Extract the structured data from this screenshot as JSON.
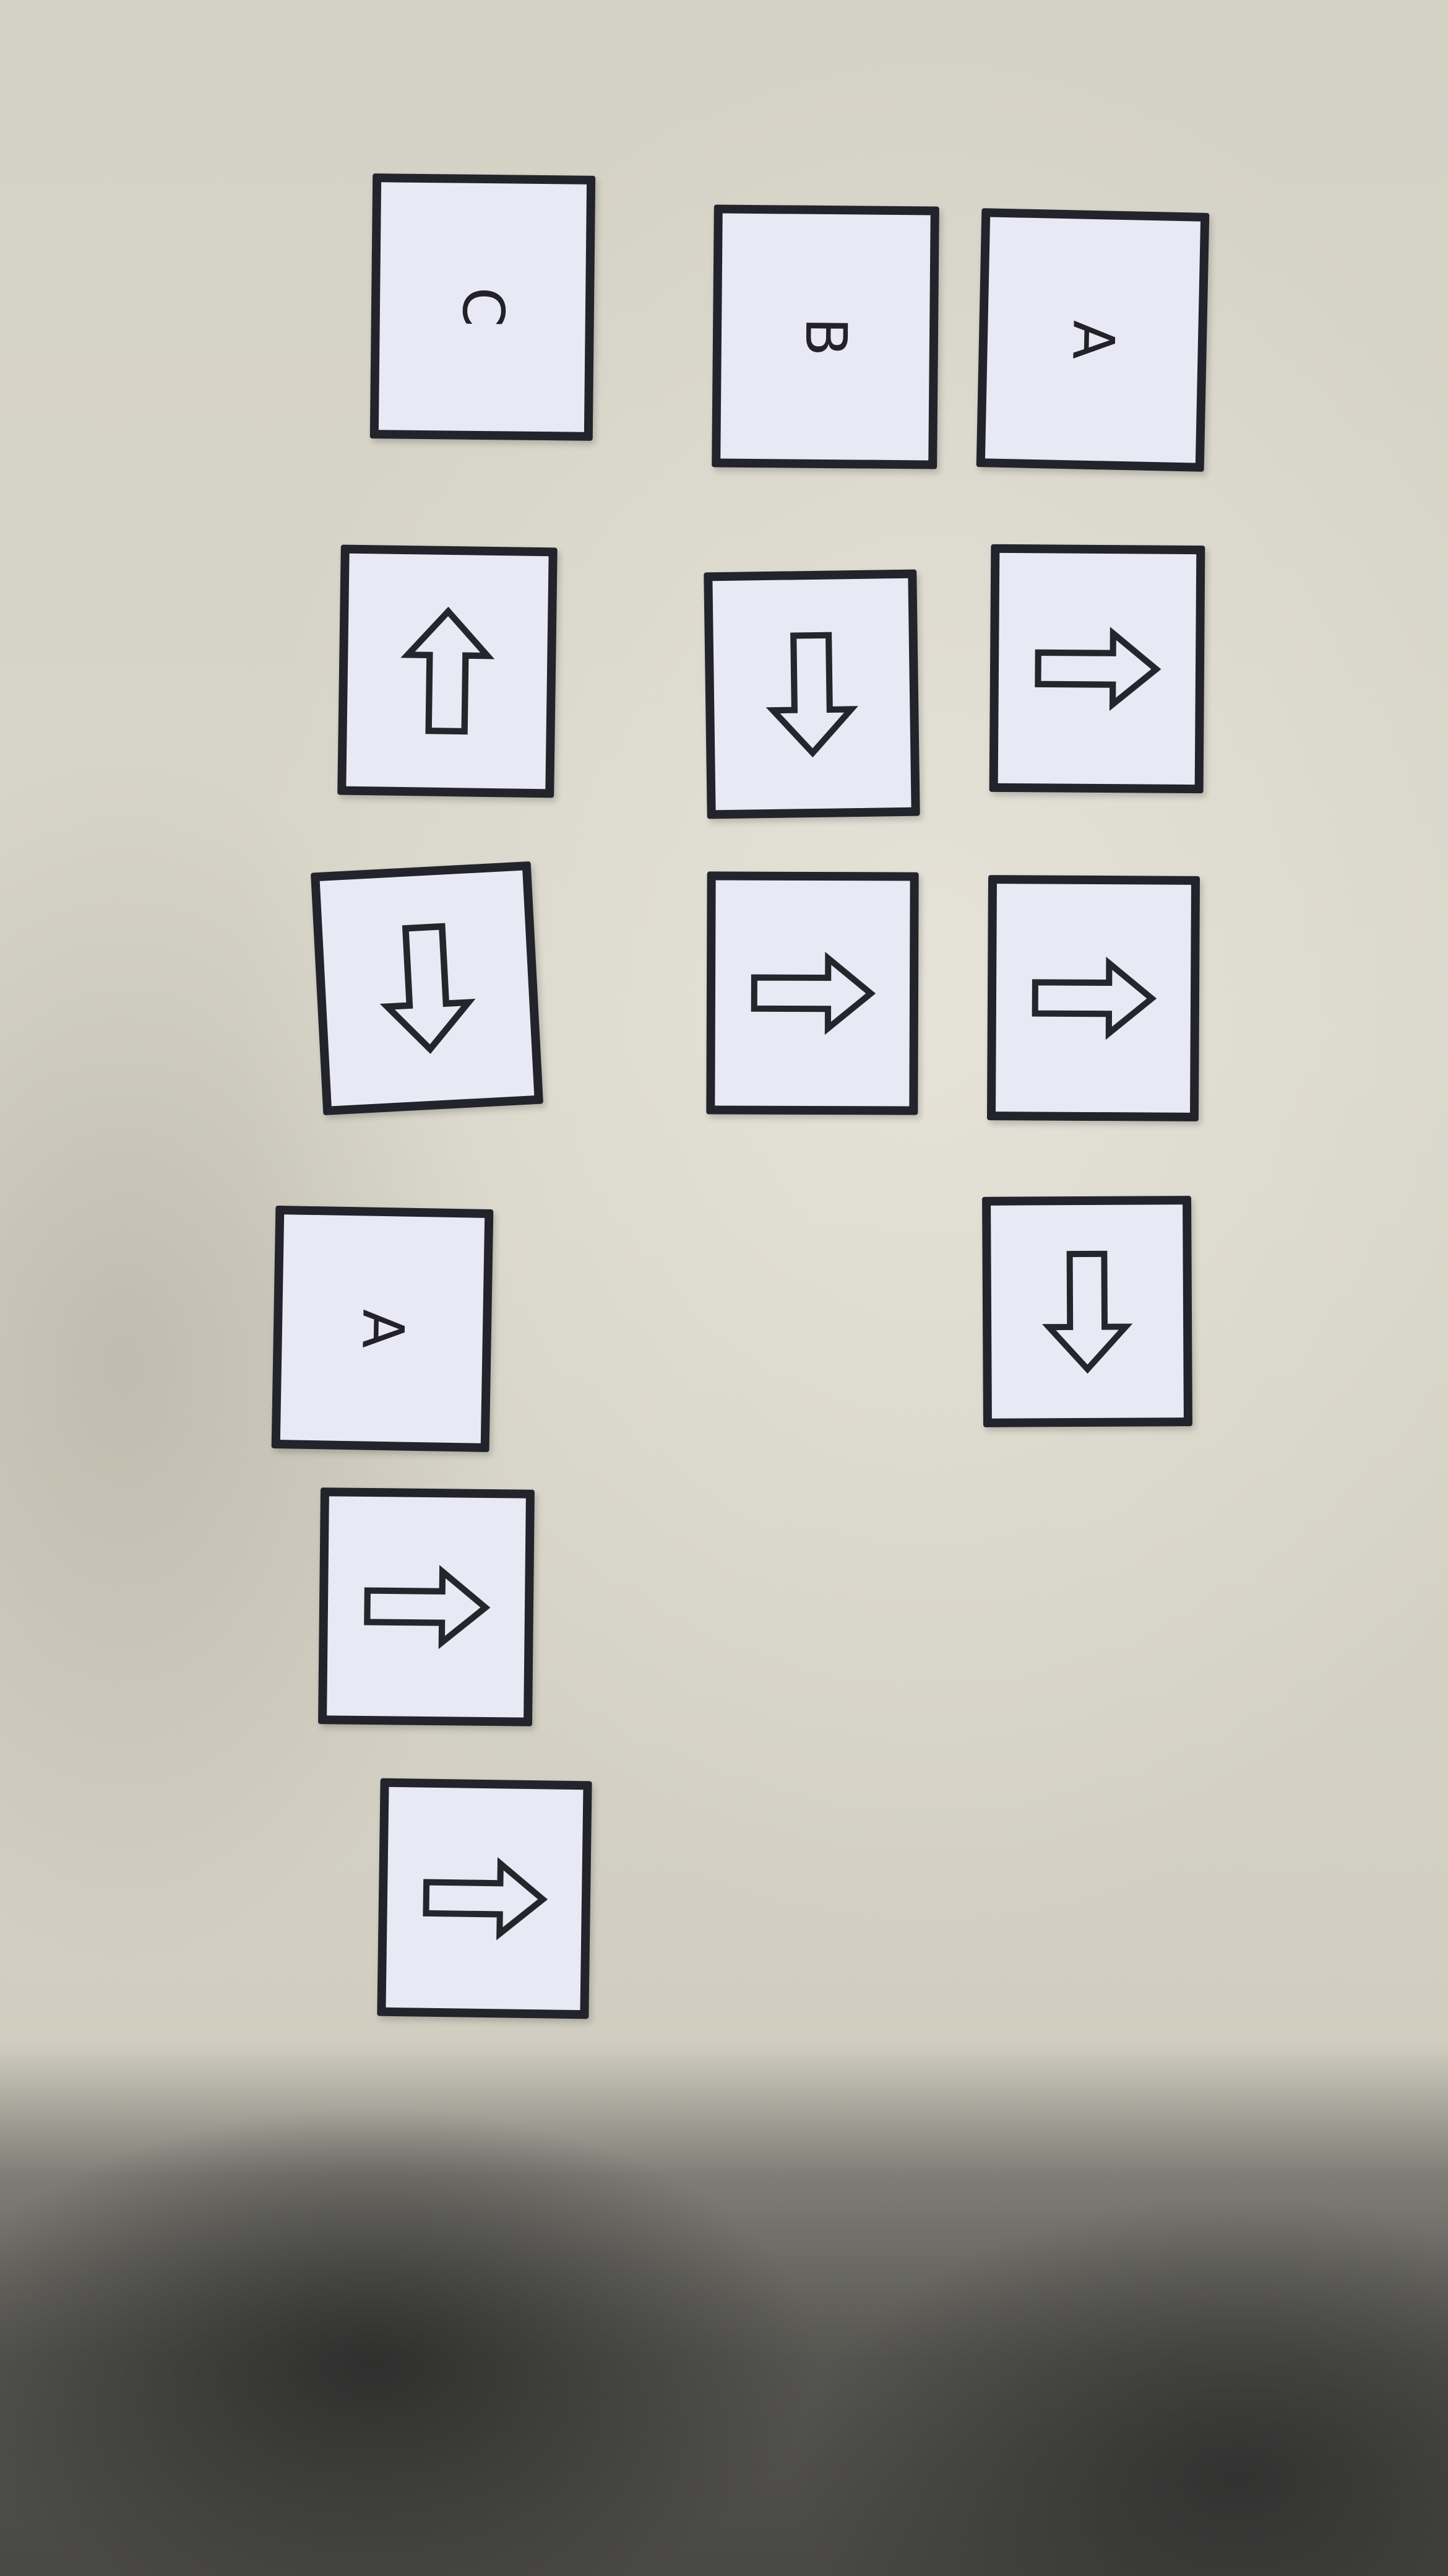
{
  "cards": {
    "c1": {
      "label": "C"
    },
    "c2": {
      "label": "B"
    },
    "c3": {
      "label": "A"
    },
    "c4": {
      "label": "A"
    }
  },
  "arrows": {
    "row2_left": "up",
    "row2_mid": "down",
    "row2_right": "right",
    "row3_left": "down",
    "row3_mid": "right",
    "row3_right": "right",
    "row4_right": "down",
    "row5_left": "right",
    "row6_left": "right"
  },
  "colors": {
    "card_border": "#23232b",
    "card_fill": "#e9e9f5",
    "background": "#d4d1c5"
  }
}
